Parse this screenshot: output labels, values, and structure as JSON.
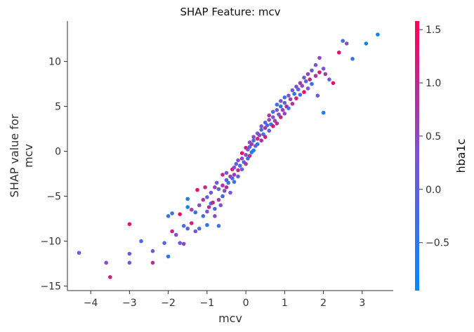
{
  "chart_data": {
    "type": "scatter",
    "title": "SHAP Feature: mcv",
    "xlabel": "mcv",
    "ylabel_lines": [
      "SHAP value for",
      "mcv"
    ],
    "xlim": [
      -4.6,
      3.8
    ],
    "ylim": [
      -15.5,
      14.5
    ],
    "xticks": [
      -4,
      -3,
      -2,
      -1,
      0,
      1,
      2,
      3
    ],
    "xtick_labels": [
      "−4",
      "−3",
      "−2",
      "−1",
      "0",
      "1",
      "2",
      "3"
    ],
    "yticks": [
      -15,
      -10,
      -5,
      0,
      5,
      10
    ],
    "ytick_labels": [
      "−15",
      "−10",
      "−5",
      "0",
      "5",
      "10"
    ],
    "grid": false,
    "colorbar": {
      "label": "hba1c",
      "range": [
        -0.95,
        1.58
      ],
      "ticks": [
        -0.5,
        0.0,
        0.5,
        1.0,
        1.5
      ],
      "tick_labels": [
        "−0.5",
        "0.0",
        "0.5",
        "1.0",
        "1.5"
      ],
      "colors": [
        "#008afb",
        "#7c52d6",
        "#ff0052"
      ]
    },
    "points": [
      [
        -4.3,
        -11.3,
        0.2
      ],
      [
        -3.6,
        -12.4,
        0.4
      ],
      [
        -3.5,
        -14.0,
        1.2
      ],
      [
        -3.0,
        -8.1,
        1.3
      ],
      [
        -3.0,
        -12.4,
        0.2
      ],
      [
        -3.0,
        -11.4,
        0.1
      ],
      [
        -2.7,
        -10.0,
        -0.2
      ],
      [
        -2.4,
        -12.4,
        0.9
      ],
      [
        -2.4,
        -11.1,
        0.1
      ],
      [
        -2.1,
        -10.2,
        -0.1
      ],
      [
        -2.0,
        -11.7,
        -0.6
      ],
      [
        -2.0,
        -7.2,
        -0.5
      ],
      [
        -1.9,
        -6.9,
        -0.3
      ],
      [
        -1.9,
        -8.9,
        1.1
      ],
      [
        -1.8,
        -9.3,
        0.3
      ],
      [
        -1.7,
        -7.0,
        1.4
      ],
      [
        -1.7,
        -10.2,
        0.2
      ],
      [
        -1.6,
        -10.3,
        0.5
      ],
      [
        -1.6,
        -8.3,
        -0.3
      ],
      [
        -1.5,
        -8.6,
        0.0
      ],
      [
        -1.5,
        -6.2,
        -0.8
      ],
      [
        -1.5,
        -5.3,
        -0.6
      ],
      [
        -1.4,
        -8.0,
        1.2
      ],
      [
        -1.4,
        -6.5,
        0.6
      ],
      [
        -1.3,
        -6.8,
        -0.4
      ],
      [
        -1.3,
        -8.9,
        0.2
      ],
      [
        -1.25,
        -4.3,
        1.3
      ],
      [
        -1.2,
        -8.6,
        -0.3
      ],
      [
        -1.2,
        -6.0,
        0.4
      ],
      [
        -1.1,
        -7.2,
        -0.2
      ],
      [
        -1.1,
        -5.4,
        0.8
      ],
      [
        -1.05,
        -4.0,
        1.0
      ],
      [
        -1.0,
        -6.7,
        0.3
      ],
      [
        -1.0,
        -8.2,
        -0.5
      ],
      [
        -1.0,
        -5.1,
        0.1
      ],
      [
        -0.95,
        -6.2,
        0.9
      ],
      [
        -0.9,
        -5.8,
        -0.4
      ],
      [
        -0.9,
        -4.6,
        0.2
      ],
      [
        -0.85,
        -5.7,
        1.1
      ],
      [
        -0.8,
        -7.2,
        0.5
      ],
      [
        -0.8,
        -6.4,
        -0.1
      ],
      [
        -0.8,
        -4.0,
        0.6
      ],
      [
        -0.75,
        -3.5,
        0.1
      ],
      [
        -0.7,
        -8.3,
        -0.4
      ],
      [
        -0.7,
        -5.4,
        0.7
      ],
      [
        -0.7,
        -4.2,
        -0.2
      ],
      [
        -0.65,
        -6.0,
        0.3
      ],
      [
        -0.6,
        -3.8,
        0.8
      ],
      [
        -0.6,
        -5.0,
        -0.3
      ],
      [
        -0.6,
        -2.6,
        1.0
      ],
      [
        -0.55,
        -4.4,
        0.4
      ],
      [
        -0.5,
        -3.2,
        0.0
      ],
      [
        -0.5,
        -4.0,
        0.9
      ],
      [
        -0.5,
        -2.4,
        0.2
      ],
      [
        -0.45,
        -3.5,
        -0.4
      ],
      [
        -0.4,
        -2.8,
        0.6
      ],
      [
        -0.4,
        -4.6,
        0.2
      ],
      [
        -0.35,
        -2.0,
        1.2
      ],
      [
        -0.35,
        -3.0,
        -0.2
      ],
      [
        -0.3,
        -1.8,
        0.3
      ],
      [
        -0.3,
        -2.6,
        0.7
      ],
      [
        -0.3,
        -3.4,
        -0.5
      ],
      [
        -0.25,
        -1.4,
        0.0
      ],
      [
        -0.2,
        -2.1,
        1.0
      ],
      [
        -0.2,
        -1.0,
        0.4
      ],
      [
        -0.2,
        -2.8,
        0.1
      ],
      [
        -0.15,
        -1.6,
        -0.3
      ],
      [
        -0.1,
        -0.8,
        0.6
      ],
      [
        -0.1,
        -2.0,
        0.2
      ],
      [
        -0.1,
        -0.2,
        1.3
      ],
      [
        -0.05,
        -1.2,
        -0.1
      ],
      [
        0.0,
        -0.4,
        0.5
      ],
      [
        0.0,
        -1.4,
        0.8
      ],
      [
        0.0,
        0.4,
        1.1
      ],
      [
        0.05,
        -0.8,
        -0.4
      ],
      [
        0.05,
        0.2,
        0.3
      ],
      [
        0.1,
        0.5,
        0.0
      ],
      [
        0.1,
        -0.5,
        0.9
      ],
      [
        0.1,
        1.0,
        0.4
      ],
      [
        0.15,
        -0.1,
        -0.6
      ],
      [
        0.15,
        0.8,
        0.7
      ],
      [
        0.2,
        1.2,
        -0.2
      ],
      [
        0.2,
        0.1,
        -0.7
      ],
      [
        0.2,
        1.6,
        0.5
      ],
      [
        0.25,
        0.6,
        0.2
      ],
      [
        0.3,
        1.4,
        1.0
      ],
      [
        0.3,
        2.0,
        0.3
      ],
      [
        0.3,
        0.8,
        -0.5
      ],
      [
        0.35,
        1.8,
        0.6
      ],
      [
        0.4,
        2.4,
        -0.1
      ],
      [
        0.4,
        1.2,
        0.9
      ],
      [
        0.4,
        2.8,
        0.3
      ],
      [
        0.45,
        1.9,
        -0.4
      ],
      [
        0.5,
        2.6,
        0.7
      ],
      [
        0.5,
        3.2,
        0.1
      ],
      [
        0.5,
        1.6,
        1.2
      ],
      [
        0.55,
        2.9,
        -0.2
      ],
      [
        0.6,
        3.5,
        0.5
      ],
      [
        0.6,
        2.3,
        0.0
      ],
      [
        0.6,
        4.0,
        0.8
      ],
      [
        0.65,
        3.0,
        -0.5
      ],
      [
        0.7,
        3.8,
        0.3
      ],
      [
        0.7,
        2.8,
        1.3
      ],
      [
        0.7,
        4.4,
        -0.1
      ],
      [
        0.75,
        3.4,
        0.6
      ],
      [
        0.8,
        4.6,
        0.2
      ],
      [
        0.8,
        3.1,
        0.9
      ],
      [
        0.8,
        5.2,
        -0.3
      ],
      [
        0.85,
        4.1,
        0.4
      ],
      [
        0.9,
        5.0,
        -0.6
      ],
      [
        0.9,
        3.8,
        1.1
      ],
      [
        0.9,
        5.6,
        0.2
      ],
      [
        0.95,
        4.6,
        0.7
      ],
      [
        1.0,
        5.4,
        0.0
      ],
      [
        1.0,
        4.2,
        0.5
      ],
      [
        1.0,
        6.0,
        -0.4
      ],
      [
        1.05,
        5.0,
        1.0
      ],
      [
        1.1,
        6.2,
        0.3
      ],
      [
        1.1,
        4.8,
        -0.2
      ],
      [
        1.15,
        5.8,
        0.6
      ],
      [
        1.2,
        6.8,
        0.1
      ],
      [
        1.2,
        5.3,
        0.8
      ],
      [
        1.25,
        6.4,
        -0.5
      ],
      [
        1.3,
        7.2,
        0.4
      ],
      [
        1.3,
        5.9,
        1.2
      ],
      [
        1.35,
        6.9,
        0.0
      ],
      [
        1.4,
        7.6,
        0.7
      ],
      [
        1.4,
        6.3,
        -0.3
      ],
      [
        1.45,
        7.3,
        0.5
      ],
      [
        1.5,
        8.2,
        0.2
      ],
      [
        1.5,
        6.6,
        1.4
      ],
      [
        1.55,
        7.8,
        -0.1
      ],
      [
        1.6,
        8.6,
        0.6
      ],
      [
        1.6,
        7.0,
        0.3
      ],
      [
        1.65,
        8.0,
        1.0
      ],
      [
        1.7,
        9.0,
        0.1
      ],
      [
        1.7,
        7.5,
        -0.4
      ],
      [
        1.8,
        8.4,
        0.8
      ],
      [
        1.8,
        9.6,
        0.3
      ],
      [
        1.85,
        6.2,
        0.2
      ],
      [
        1.9,
        8.8,
        1.2
      ],
      [
        1.9,
        10.4,
        0.5
      ],
      [
        2.0,
        9.2,
        0.2
      ],
      [
        2.0,
        4.3,
        -0.6
      ],
      [
        2.05,
        8.6,
        0.7
      ],
      [
        2.15,
        8.0,
        0.1
      ],
      [
        2.25,
        7.6,
        1.3
      ],
      [
        2.4,
        11.0,
        1.4
      ],
      [
        2.5,
        12.3,
        -0.2
      ],
      [
        2.6,
        12.0,
        0.4
      ],
      [
        2.75,
        10.3,
        -0.5
      ],
      [
        3.1,
        12.0,
        -0.8
      ],
      [
        3.4,
        13.0,
        -0.9
      ]
    ]
  }
}
